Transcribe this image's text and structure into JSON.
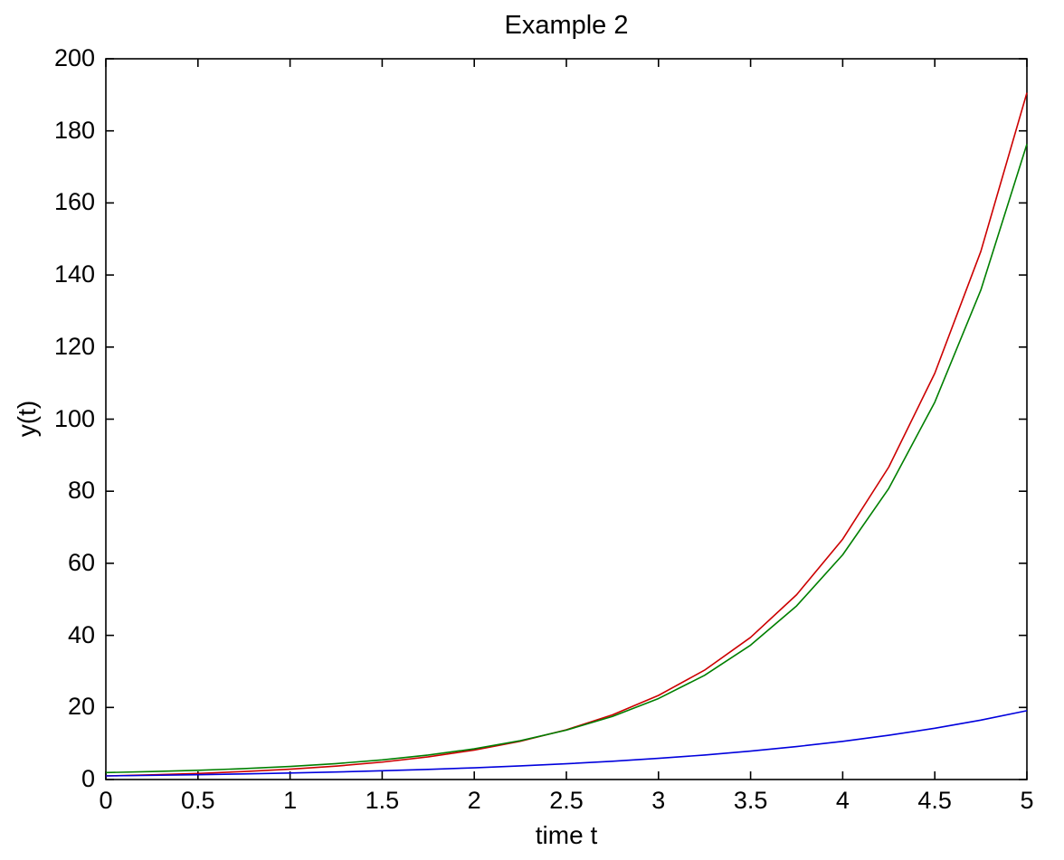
{
  "chart_data": {
    "type": "line",
    "title": "Example 2",
    "xlabel": "time t",
    "ylabel": "y(t)",
    "xlim": [
      0,
      5
    ],
    "ylim": [
      0,
      200
    ],
    "x_ticks": [
      0,
      0.5,
      1,
      1.5,
      2,
      2.5,
      3,
      3.5,
      4,
      4.5,
      5
    ],
    "y_ticks": [
      0,
      20,
      40,
      60,
      80,
      100,
      120,
      140,
      160,
      180,
      200
    ],
    "grid": false,
    "legend_position": "none",
    "background_color": "#ffffff",
    "axis_color": "#000000",
    "x": [
      0,
      0.25,
      0.5,
      0.75,
      1,
      1.25,
      1.5,
      1.75,
      2,
      2.25,
      2.5,
      2.75,
      3,
      3.25,
      3.5,
      3.75,
      4,
      4.25,
      4.5,
      4.75,
      5
    ],
    "series": [
      {
        "name": "red-curve",
        "color": "#cc0000",
        "values": [
          1.0,
          1.3,
          1.69,
          2.2,
          2.86,
          3.72,
          4.83,
          6.28,
          8.17,
          10.62,
          13.81,
          17.95,
          23.34,
          30.34,
          39.45,
          51.29,
          66.69,
          86.7,
          112.74,
          146.57,
          190.57
        ]
      },
      {
        "name": "green-curve",
        "color": "#007f00",
        "values": [
          1.92,
          2.2,
          2.56,
          3.02,
          3.63,
          4.42,
          5.44,
          6.78,
          8.52,
          10.77,
          13.71,
          17.51,
          22.47,
          28.91,
          37.29,
          48.19,
          62.36,
          80.76,
          104.71,
          135.83,
          176.32
        ]
      },
      {
        "name": "blue-curve",
        "color": "#0000dd",
        "values": [
          1.0,
          1.16,
          1.34,
          1.56,
          1.8,
          2.09,
          2.42,
          2.81,
          3.25,
          3.77,
          4.37,
          5.07,
          5.87,
          6.8,
          7.89,
          9.14,
          10.59,
          12.27,
          14.22,
          16.48,
          19.11
        ]
      }
    ]
  }
}
